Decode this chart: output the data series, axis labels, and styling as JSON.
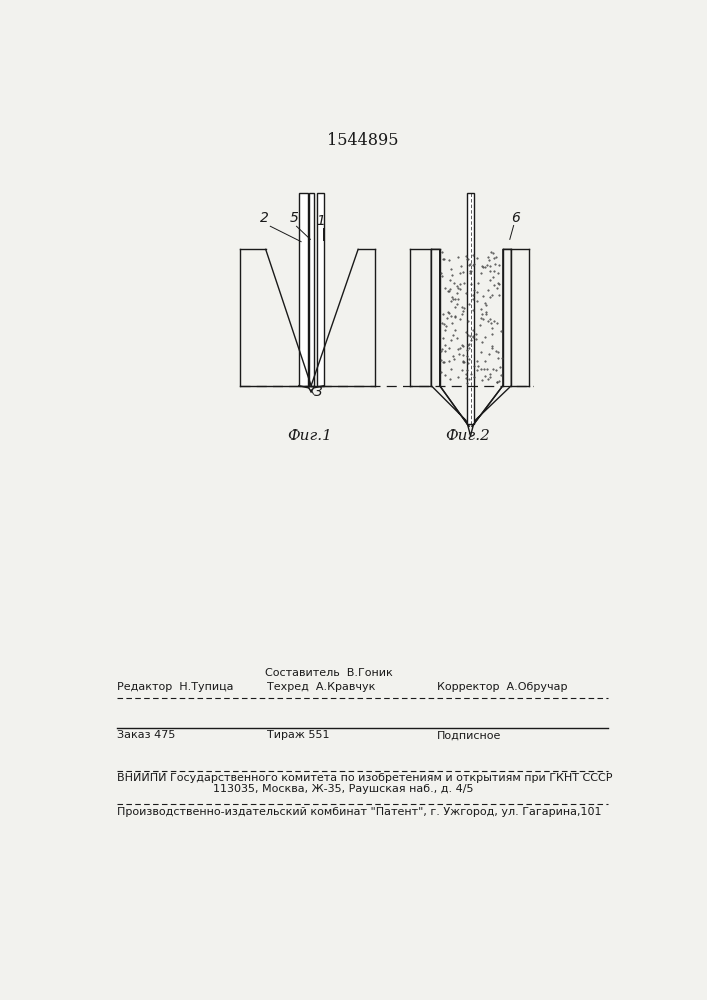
{
  "patent_number": "1544895",
  "fig1_label": "Фиг.1",
  "fig2_label": "Фиг.2",
  "label_1": "1",
  "label_2": "2",
  "label_3": "3",
  "label_5": "5",
  "label_6": "6",
  "editor_line": "Редактор  Н.Тупица",
  "compiler_label": "Составитель  В.Гоник",
  "techred_line": "Техред  А.Кравчук",
  "corrector_line": "Корректор  А.Обручар",
  "order_line": "Заказ 475",
  "tirage_line": "Тираж 551",
  "podpisnoe_line": "Подписное",
  "vnipi_line1": "ВНИИПИ Государственного комитета по изобретениям и открытиям при ГКНТ СССР",
  "vnipi_line2": "113035, Москва, Ж-35, Раушская наб., д. 4/5",
  "factory_line": "Производственно-издательский комбинат \"Патент\", г. Ужгород, ул. Гагарина,101",
  "bg_color": "#f2f2ee",
  "line_color": "#1a1a1a"
}
